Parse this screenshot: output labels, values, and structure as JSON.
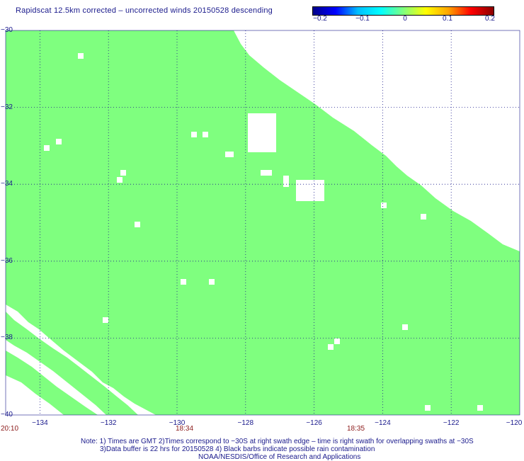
{
  "title": "Rapidscat 12.5km corrected – uncorrected winds 20150528 descending",
  "colorbar": {
    "labels": [
      "−0.2",
      "−0.1",
      "0",
      "0.1",
      "0.2"
    ],
    "colors": [
      "#00008b",
      "#0000ff",
      "#00bfff",
      "#00ffff",
      "#7fff7f",
      "#ffff00",
      "#ffa500",
      "#ff0000",
      "#8b0000"
    ]
  },
  "chart_data": {
    "type": "heatmap",
    "title": "Rapidscat 12.5km corrected – uncorrected winds 20150528 descending",
    "xlabel": "",
    "ylabel": "",
    "xlim": [
      -135,
      -120
    ],
    "ylim": [
      -40,
      -30
    ],
    "xticks": [
      "−134",
      "−132",
      "−130",
      "−128",
      "−126",
      "−124",
      "−122",
      "−120"
    ],
    "yticks": [
      "−30",
      "−32",
      "−34",
      "−36",
      "−38",
      "−40"
    ],
    "grid": true,
    "fill_value": 0,
    "fill_color": "#7fff7f",
    "times": [
      {
        "label": "20:10",
        "lon": -135
      },
      {
        "label": "18:34",
        "lon": -130
      },
      {
        "label": "18:35",
        "lon": -125
      }
    ]
  },
  "notes": {
    "line1": "Note: 1) Times are GMT 2)Times correspond to −30S at right swath edge – time is right swath for overlapping swaths at −30S",
    "line2": "3)Data buffer is 22 hrs for 20150528 4) Black barbs indicate possible rain contamination",
    "line3": "NOAA/NESDIS/Office of Research and Applications"
  }
}
